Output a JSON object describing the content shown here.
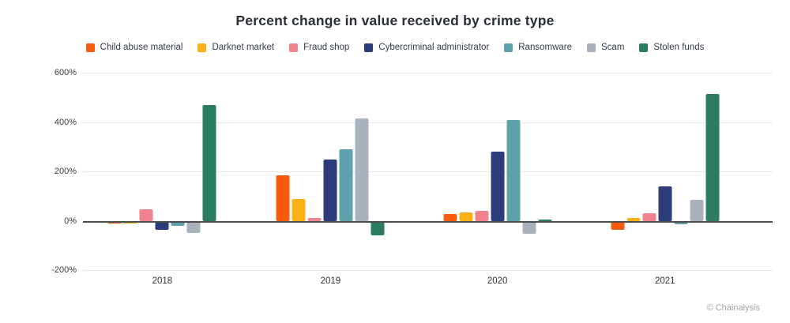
{
  "title": "Percent change in value received by crime type",
  "attribution": "© Chainalysis",
  "chart_data": {
    "type": "bar",
    "title": "Percent change in value received by crime type",
    "categories": [
      "2018",
      "2019",
      "2020",
      "2021"
    ],
    "series": [
      {
        "name": "Child abuse material",
        "color": "#F85B0E",
        "values": [
          -10,
          185,
          27,
          -38
        ]
      },
      {
        "name": "Darknet market",
        "color": "#FBB017",
        "values": [
          -10,
          88,
          35,
          12
        ]
      },
      {
        "name": "Fraud shop",
        "color": "#F1828F",
        "values": [
          45,
          10,
          40,
          30
        ]
      },
      {
        "name": "Cybercriminal administrator",
        "color": "#2C3C79",
        "values": [
          -38,
          248,
          280,
          138
        ]
      },
      {
        "name": "Ransomware",
        "color": "#5FA0AD",
        "values": [
          -22,
          290,
          408,
          -13
        ]
      },
      {
        "name": "Scam",
        "color": "#A8B1BD",
        "values": [
          -48,
          415,
          -52,
          85
        ]
      },
      {
        "name": "Stolen funds",
        "color": "#2C7C62",
        "values": [
          470,
          -58,
          5,
          515
        ]
      }
    ],
    "xlabel": "",
    "ylabel": "",
    "ylim": [
      -200,
      600
    ],
    "y_ticks": [
      600,
      400,
      200,
      0,
      -200
    ],
    "y_tick_suffix": "%",
    "grid": true,
    "legend_position": "top"
  }
}
